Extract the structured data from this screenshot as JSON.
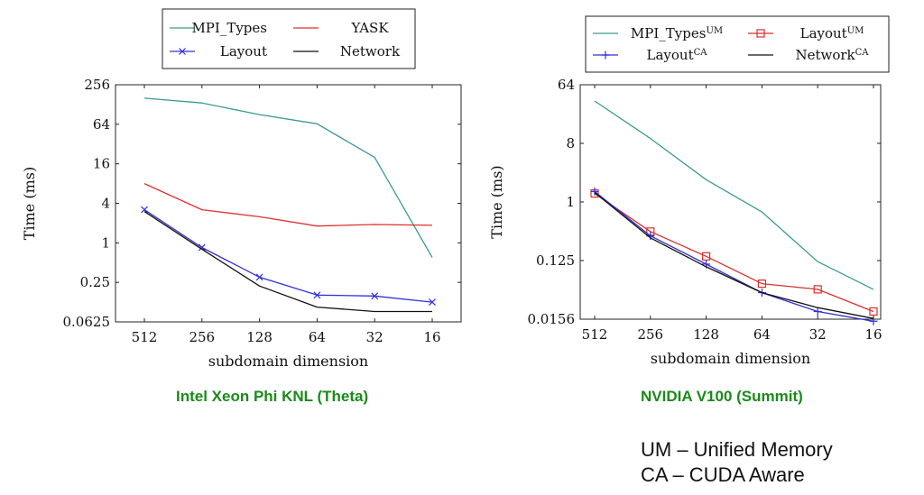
{
  "captions": {
    "left": "Intel Xeon Phi KNL (Theta)",
    "right": "NVIDIA V100 (Summit)"
  },
  "notes": {
    "um": "UM – Unified Memory",
    "ca": "CA – CUDA Aware"
  },
  "colors": {
    "caption": "#1a8a1a",
    "mpi_types": "#3a9a94",
    "yask": "#e03030",
    "layout": "#3030d8",
    "network": "#111111",
    "layout_um": "#d83030"
  },
  "chart_data": [
    {
      "type": "line",
      "title": "",
      "xlabel": "subdomain dimension",
      "ylabel": "Time (ms)",
      "x": [
        512,
        256,
        128,
        64,
        32,
        16
      ],
      "x_tick_labels": [
        "512",
        "256",
        "128",
        "64",
        "32",
        "16"
      ],
      "y_scale": "log2",
      "ylim": [
        0.0625,
        256
      ],
      "y_ticks": [
        256,
        64,
        16,
        4,
        1,
        0.25,
        0.0625
      ],
      "y_tick_labels": [
        "256",
        "64",
        "16",
        "4",
        "1",
        "0.25",
        "0.0625"
      ],
      "grid": false,
      "legend_placement": "top-center",
      "series": [
        {
          "name": "MPI_Types",
          "values": [
            160,
            135,
            90,
            65,
            20,
            0.6
          ],
          "color": "#3a9a94",
          "marker": "none"
        },
        {
          "name": "YASK",
          "values": [
            8,
            3.2,
            2.5,
            1.8,
            1.9,
            1.85
          ],
          "color": "#e03030",
          "marker": "none"
        },
        {
          "name": "Layout",
          "values": [
            3.2,
            0.85,
            0.3,
            0.16,
            0.155,
            0.125
          ],
          "color": "#3030d8",
          "marker": "x"
        },
        {
          "name": "Network",
          "values": [
            3.0,
            0.8,
            0.22,
            0.105,
            0.09,
            0.09
          ],
          "color": "#111111",
          "marker": "none"
        }
      ]
    },
    {
      "type": "line",
      "title": "",
      "xlabel": "subdomain dimension",
      "ylabel": "Time (ms)",
      "x": [
        512,
        256,
        128,
        64,
        32,
        16
      ],
      "x_tick_labels": [
        "512",
        "256",
        "128",
        "64",
        "32",
        "16"
      ],
      "y_scale": "log2",
      "ylim": [
        0.0156,
        64
      ],
      "y_ticks": [
        64,
        8,
        1,
        0.125,
        0.0156
      ],
      "y_tick_labels": [
        "64",
        "8",
        "1",
        "0.125",
        "0.0156"
      ],
      "grid": false,
      "legend_placement": "top-center",
      "series": [
        {
          "name": "MPI_Types",
          "superscript": "UM",
          "values": [
            36,
            9.5,
            2.2,
            0.7,
            0.12,
            0.045
          ],
          "color": "#3a9a94",
          "marker": "none"
        },
        {
          "name": "Layout",
          "superscript": "UM",
          "values": [
            1.35,
            0.35,
            0.145,
            0.055,
            0.045,
            0.0205
          ],
          "color": "#d83030",
          "marker": "square"
        },
        {
          "name": "Layout",
          "superscript": "CA",
          "values": [
            1.45,
            0.3,
            0.11,
            0.04,
            0.0205,
            0.0145
          ],
          "color": "#3030d8",
          "marker": "plus"
        },
        {
          "name": "Network",
          "superscript": "CA",
          "values": [
            1.4,
            0.28,
            0.1,
            0.04,
            0.0235,
            0.016
          ],
          "color": "#111111",
          "marker": "none"
        }
      ]
    }
  ]
}
